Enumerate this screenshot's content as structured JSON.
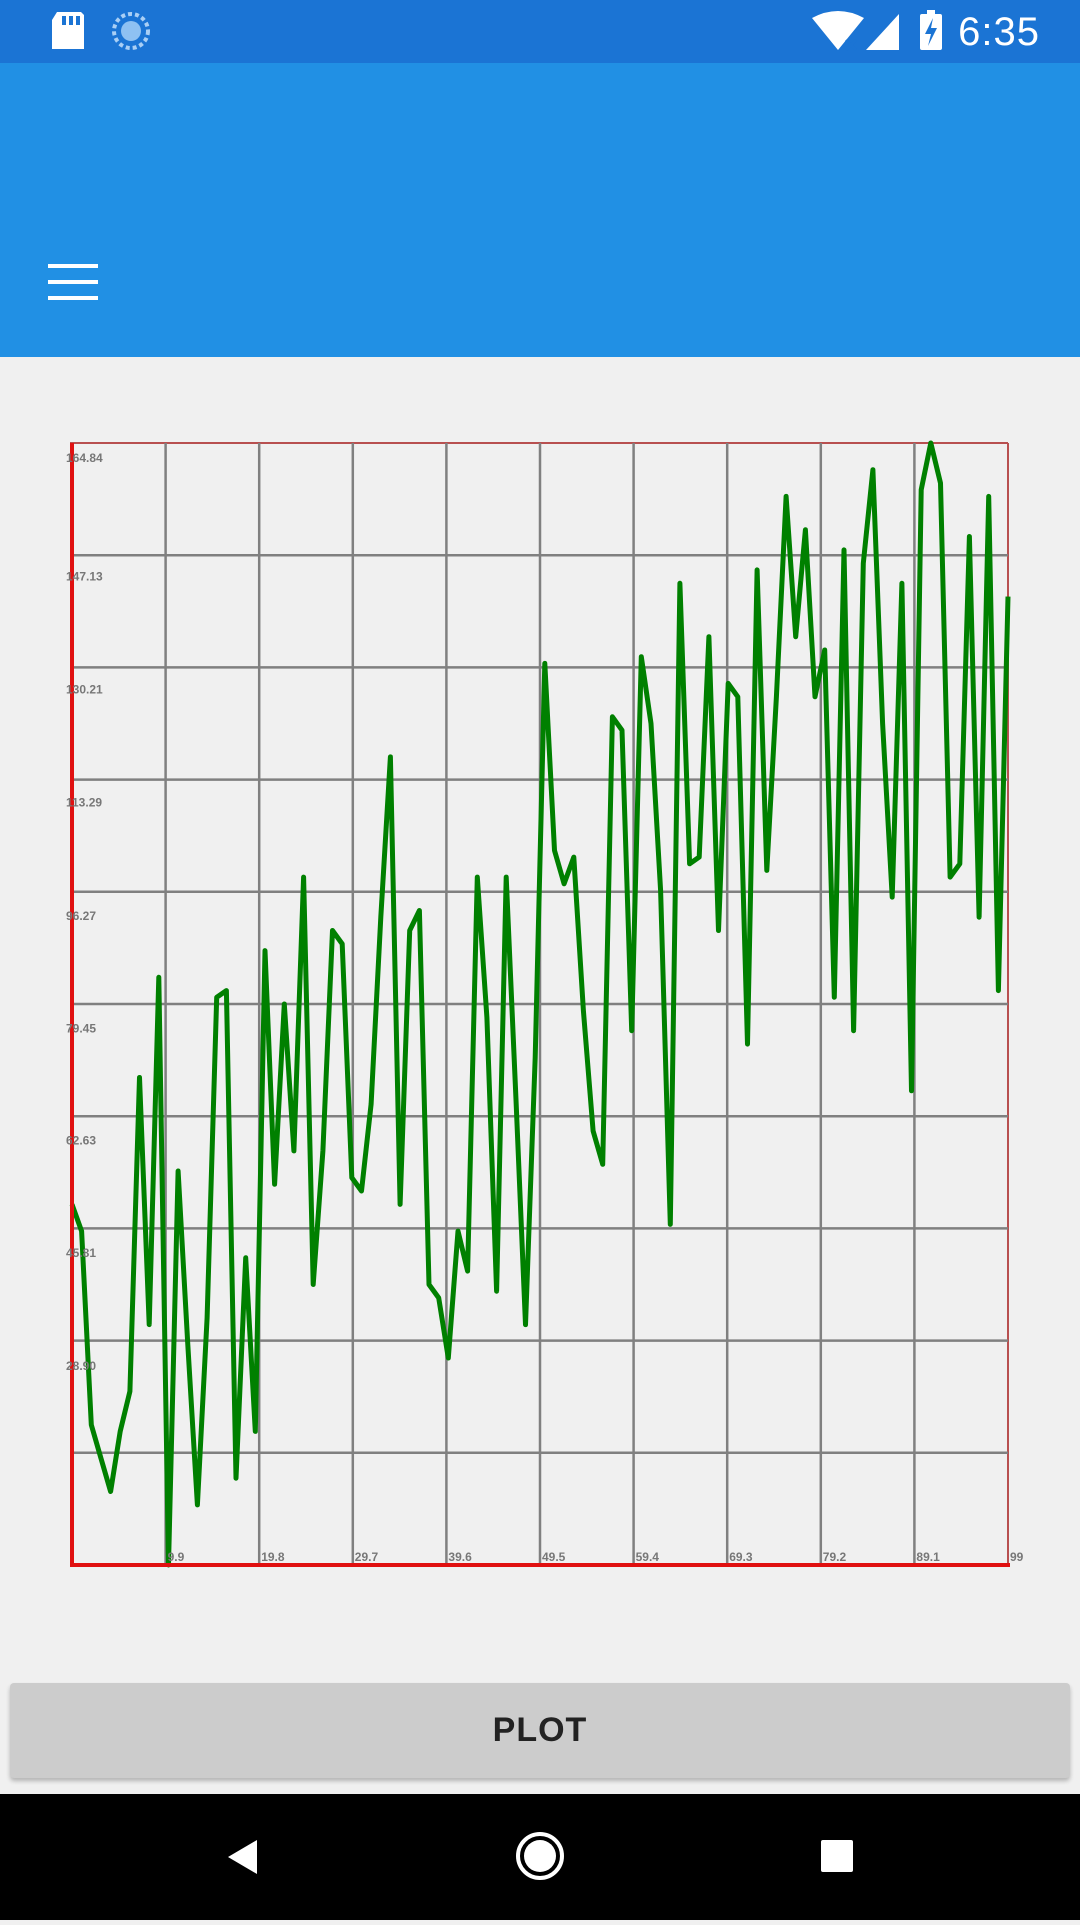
{
  "status_bar": {
    "time": "6:35",
    "icons": [
      "sd-card-icon",
      "sync-icon",
      "wifi-icon",
      "signal-icon",
      "battery-charging-icon"
    ],
    "color": "#1b74d4"
  },
  "app_bar": {
    "color": "#2190e4",
    "menu_icon": "hamburger-menu-icon"
  },
  "plot_button": {
    "label": "PLOT"
  },
  "nav_bar": {
    "buttons": [
      "back-icon",
      "home-icon",
      "recents-icon"
    ]
  },
  "chart_data": {
    "type": "line",
    "title": "",
    "xlabel": "",
    "ylabel": "",
    "xlim": [
      0,
      99
    ],
    "ylim": [
      0,
      168
    ],
    "grid": true,
    "line_color": "#008000",
    "frame_color": "#e01010",
    "x_tick_labels": [
      "9.9",
      "19.8",
      "29.7",
      "39.6",
      "49.5",
      "59.4",
      "69.3",
      "79.2",
      "89.1",
      "99"
    ],
    "y_tick_labels": [
      "28.90",
      "45.81",
      "62.63",
      "79.45",
      "96.27",
      "113.29",
      "130.21",
      "147.13",
      "164.84"
    ],
    "y_tick_values": [
      28.9,
      45.81,
      62.63,
      79.45,
      96.27,
      113.29,
      130.21,
      147.13,
      164.84
    ],
    "series": [
      {
        "values": [
          54,
          50,
          21,
          16,
          11,
          20,
          26,
          73,
          36,
          88,
          0,
          59,
          33,
          9,
          37,
          85,
          86,
          13,
          46,
          20,
          92,
          57,
          84,
          62,
          103,
          42,
          62,
          95,
          93,
          58,
          56,
          69,
          97,
          121,
          54,
          95,
          98,
          42,
          40,
          31,
          50,
          44,
          103,
          82,
          41,
          103,
          70,
          36,
          76,
          135,
          107,
          102,
          106,
          83,
          65,
          60,
          127,
          125,
          80,
          136,
          126,
          101,
          51,
          147,
          105,
          106,
          139,
          95,
          132,
          130,
          78,
          149,
          104,
          130,
          160,
          139,
          155,
          130,
          137,
          85,
          152,
          80,
          150,
          164,
          126,
          100,
          147,
          71,
          161,
          168,
          162,
          103,
          105,
          154,
          97,
          160,
          86,
          145
        ]
      }
    ]
  }
}
